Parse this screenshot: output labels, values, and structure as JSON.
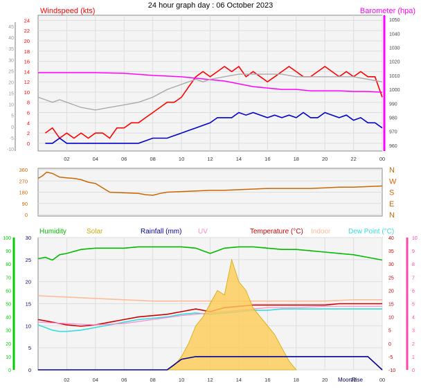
{
  "title": "24 hour graph day : 06 October 2023",
  "x_tick_labels": [
    "02",
    "04",
    "06",
    "08",
    "10",
    "12",
    "14",
    "16",
    "18",
    "20",
    "22",
    "00"
  ],
  "colors": {
    "windspeed": "#ff0000",
    "wind_avg": "#0000cc",
    "barometer": "#ff00ff",
    "gray_series": "#aaaaaa",
    "direction": "#cc6600",
    "humidity": "#00bb00",
    "solar": "#ccaa00",
    "rainfall": "#000099",
    "uv": "#ff88cc",
    "temperature": "#cc0000",
    "indoor": "#ffbb99",
    "dewpoint": "#33dddd",
    "left_scale_green": "#00cc00",
    "right_scale_pink": "#ff44aa"
  },
  "chart_data": [
    {
      "type": "line",
      "title": "24 hour graph day : 06 October 2023",
      "x_label": "",
      "x_ticks": [
        "02",
        "04",
        "06",
        "08",
        "10",
        "12",
        "14",
        "16",
        "18",
        "20",
        "22",
        "00"
      ],
      "left_axis_label": "Windspeed (kts)",
      "left_ticks": [
        0,
        2,
        4,
        6,
        8,
        10,
        12,
        14,
        16,
        18,
        20,
        22,
        24
      ],
      "left_ylim": [
        0,
        25
      ],
      "outer_left_ticks": [
        -10,
        -5,
        0,
        5,
        10,
        15,
        20,
        25,
        30,
        35,
        40,
        45
      ],
      "right_axis_label": "Barometer (hpa)",
      "right_ticks": [
        960,
        970,
        980,
        990,
        1000,
        1010,
        1020,
        1030,
        1040,
        1050
      ],
      "right_extra_tick": 980,
      "grid": true,
      "series": [
        {
          "name": "Windspeed (kts)",
          "role": "gust",
          "x": [
            0.5,
            1,
            1.5,
            2,
            2.5,
            3,
            3.5,
            4,
            4.5,
            5,
            5.5,
            6,
            6.5,
            7,
            7.5,
            8,
            8.5,
            9,
            9.5,
            10,
            10.5,
            11,
            11.5,
            12,
            12.5,
            13,
            13.5,
            14,
            14.5,
            15,
            15.5,
            16,
            16.5,
            17,
            17.5,
            18,
            18.5,
            19,
            19.5,
            20,
            20.5,
            21,
            21.5,
            22,
            22.5,
            23,
            23.5,
            24
          ],
          "values": [
            2,
            3,
            1,
            2,
            1,
            2,
            1,
            2,
            2,
            1,
            3,
            3,
            4,
            4,
            5,
            6,
            7,
            8,
            8,
            9,
            11,
            13,
            14,
            13,
            14,
            15,
            14,
            15,
            13,
            14,
            13,
            12,
            13,
            14,
            15,
            14,
            13,
            13,
            14,
            15,
            14,
            13,
            14,
            13,
            14,
            13,
            13,
            9
          ]
        },
        {
          "name": "",
          "role": "average",
          "x": [
            0.5,
            1,
            1.5,
            2,
            2.5,
            3,
            3.5,
            4,
            4.5,
            5,
            5.5,
            6,
            6.5,
            7,
            7.5,
            8,
            8.5,
            9,
            9.5,
            10,
            10.5,
            11,
            11.5,
            12,
            12.5,
            13,
            13.5,
            14,
            14.5,
            15,
            15.5,
            16,
            16.5,
            17,
            17.5,
            18,
            18.5,
            19,
            19.5,
            20,
            20.5,
            21,
            21.5,
            22,
            22.5,
            23,
            23.5,
            24
          ],
          "values": [
            0,
            0,
            1,
            0,
            0,
            0,
            0,
            0,
            0,
            0,
            0,
            0,
            0,
            0,
            0.5,
            1,
            1,
            1,
            1.5,
            2,
            2.5,
            3,
            3.5,
            4,
            5,
            5,
            5,
            6,
            5.5,
            6,
            5.5,
            5,
            5.5,
            5,
            5.5,
            5,
            6,
            5,
            5,
            6,
            5.5,
            5,
            5.5,
            4.5,
            5,
            4,
            4,
            3
          ]
        },
        {
          "name": "Barometer (hpa)",
          "role": "barometer",
          "x": [
            0,
            2,
            4,
            6,
            8,
            10,
            11,
            12,
            13,
            14,
            15,
            16,
            17,
            18,
            19,
            20,
            21,
            22,
            23,
            24
          ],
          "values": [
            1012,
            1012,
            1012,
            1011.5,
            1010,
            1009,
            1008,
            1007,
            1006,
            1004,
            1002,
            1001,
            1000,
            1000,
            999,
            999,
            999,
            998.5,
            998.5,
            998
          ]
        },
        {
          "name": "",
          "role": "gray",
          "x": [
            0,
            0.5,
            1,
            1.5,
            2,
            3,
            4,
            5,
            6,
            7,
            8,
            9,
            10,
            10.5,
            11,
            11.5,
            12,
            13,
            14,
            15,
            16,
            17,
            18,
            19,
            20,
            21,
            22,
            23,
            24
          ],
          "values": [
            9,
            8.5,
            8,
            8.5,
            8,
            7,
            6.5,
            7,
            7.5,
            8,
            9,
            10.5,
            11.5,
            12,
            12.5,
            12,
            12.5,
            13,
            13.5,
            13.5,
            13.5,
            13.5,
            13,
            13,
            13,
            13,
            13,
            12.5,
            12
          ]
        }
      ]
    },
    {
      "type": "line",
      "title": "",
      "left_ticks": [
        0,
        90,
        180,
        270,
        360
      ],
      "left_ylim": [
        0,
        360
      ],
      "right_labels": [
        "N",
        "W",
        "S",
        "E",
        "N"
      ],
      "x_ticks": [],
      "series": [
        {
          "name": "",
          "role": "direction",
          "x": [
            0,
            0.3,
            0.6,
            1,
            1.5,
            2,
            2.5,
            3,
            3.5,
            4,
            5,
            6,
            7,
            7.5,
            8,
            8.5,
            9,
            10,
            11,
            12,
            13,
            14,
            15,
            16,
            17,
            18,
            19,
            20,
            21,
            22,
            23,
            24
          ],
          "values": [
            290,
            310,
            340,
            330,
            300,
            295,
            290,
            280,
            260,
            250,
            180,
            175,
            170,
            160,
            155,
            170,
            180,
            185,
            190,
            195,
            195,
            200,
            205,
            210,
            210,
            210,
            210,
            215,
            220,
            220,
            225,
            230
          ]
        }
      ]
    },
    {
      "type": "line",
      "title": "",
      "legend": [
        "Humidity",
        "Solar",
        "Rainfall (mm)",
        "UV",
        "Temperature (°C)",
        "Indoor",
        "Dew Point (°C)"
      ],
      "x_ticks": [
        "02",
        "04",
        "06",
        "08",
        "10",
        "12",
        "14",
        "16",
        "18",
        "20",
        "22",
        "00"
      ],
      "x_marker_label": "MoonRise",
      "left_outer_ticks": [
        0,
        10,
        20,
        30,
        40,
        50,
        60,
        70,
        80,
        90,
        100
      ],
      "left_inner_ticks": [
        0,
        5,
        10,
        15,
        20,
        25,
        30
      ],
      "right_inner_ticks": [
        -10,
        -5,
        0,
        5,
        10,
        15,
        20,
        25,
        30,
        35,
        40
      ],
      "right_outer_ticks": [
        0,
        1,
        2,
        3,
        4,
        5,
        6,
        7,
        8,
        9,
        10
      ],
      "series": [
        {
          "name": "Humidity",
          "scale": "percent",
          "x": [
            0,
            0.5,
            1,
            1.5,
            2,
            3,
            4,
            5,
            6,
            7,
            8,
            9,
            10,
            11,
            11.5,
            12,
            12.5,
            13,
            14,
            15,
            16,
            17,
            18,
            19,
            20,
            21,
            22,
            23,
            24
          ],
          "values": [
            84,
            85,
            83,
            87,
            88,
            91,
            92,
            92,
            92,
            93,
            93,
            93,
            93,
            92,
            90,
            88,
            90,
            92,
            93,
            93,
            92,
            91,
            91,
            90,
            89,
            88,
            87,
            85,
            83
          ]
        },
        {
          "name": "Temperature (°C)",
          "scale": "temp",
          "x": [
            0,
            0.5,
            1,
            1.5,
            2,
            3,
            4,
            5,
            6,
            7,
            8,
            9,
            10,
            11,
            12,
            13,
            14,
            15,
            16,
            17,
            18,
            19,
            20,
            21,
            22,
            23,
            24
          ],
          "values": [
            9,
            8.5,
            8,
            7.5,
            7,
            6.5,
            7,
            8,
            9,
            10,
            10.5,
            11,
            12,
            13,
            12,
            13.5,
            14,
            14.5,
            14.5,
            14.5,
            14.5,
            14.5,
            14.5,
            15,
            15,
            15,
            15
          ]
        },
        {
          "name": "Dew Point (°C)",
          "scale": "temp",
          "x": [
            0,
            0.5,
            1,
            1.5,
            2,
            3,
            4,
            5,
            6,
            7,
            8,
            9,
            10,
            11,
            12,
            13,
            14,
            15,
            16,
            17,
            18,
            19,
            20,
            21,
            22,
            23,
            24
          ],
          "values": [
            7,
            6,
            5,
            4.5,
            4.5,
            5,
            6,
            7,
            8,
            9,
            9.5,
            10,
            11,
            11.5,
            11,
            11.5,
            12,
            12.5,
            12.5,
            13,
            13,
            13,
            13,
            13,
            13,
            13,
            13
          ]
        },
        {
          "name": "Indoor",
          "scale": "temp",
          "x": [
            0,
            2,
            4,
            6,
            8,
            10,
            12,
            14,
            16,
            18,
            20,
            22,
            24
          ],
          "values": [
            18,
            17.5,
            17,
            16.5,
            16,
            16,
            16,
            16,
            16,
            16,
            16,
            16.5,
            16.5
          ]
        },
        {
          "name": "UV",
          "scale": "temp",
          "x": [
            0,
            2,
            4,
            6,
            8,
            10,
            12,
            14,
            16,
            18,
            20,
            22,
            24
          ],
          "values": [
            8,
            7.5,
            7,
            7.5,
            9,
            10.5,
            11.5,
            12.5,
            13.5,
            13.5,
            14,
            14,
            14
          ]
        },
        {
          "name": "Solar",
          "scale": "solar",
          "x": [
            9,
            9.5,
            10,
            10.5,
            11,
            11.5,
            12,
            12.5,
            13,
            13.5,
            14,
            14.5,
            15,
            15.5,
            16,
            16.5,
            17,
            17.5,
            18
          ],
          "values": [
            0,
            1,
            3,
            6,
            10,
            12,
            15,
            18,
            17,
            25,
            20,
            18,
            14,
            12,
            10,
            8,
            5,
            2,
            0
          ]
        },
        {
          "name": "Rainfall (mm)",
          "scale": "rain",
          "x": [
            0,
            9,
            10,
            11,
            12,
            13,
            14,
            15,
            16,
            17,
            18,
            19,
            20,
            21,
            22,
            23,
            24
          ],
          "values": [
            0,
            0,
            0.8,
            1,
            1,
            1,
            1,
            1,
            1,
            1,
            1,
            1,
            1,
            1,
            1,
            1,
            0
          ]
        }
      ]
    }
  ]
}
